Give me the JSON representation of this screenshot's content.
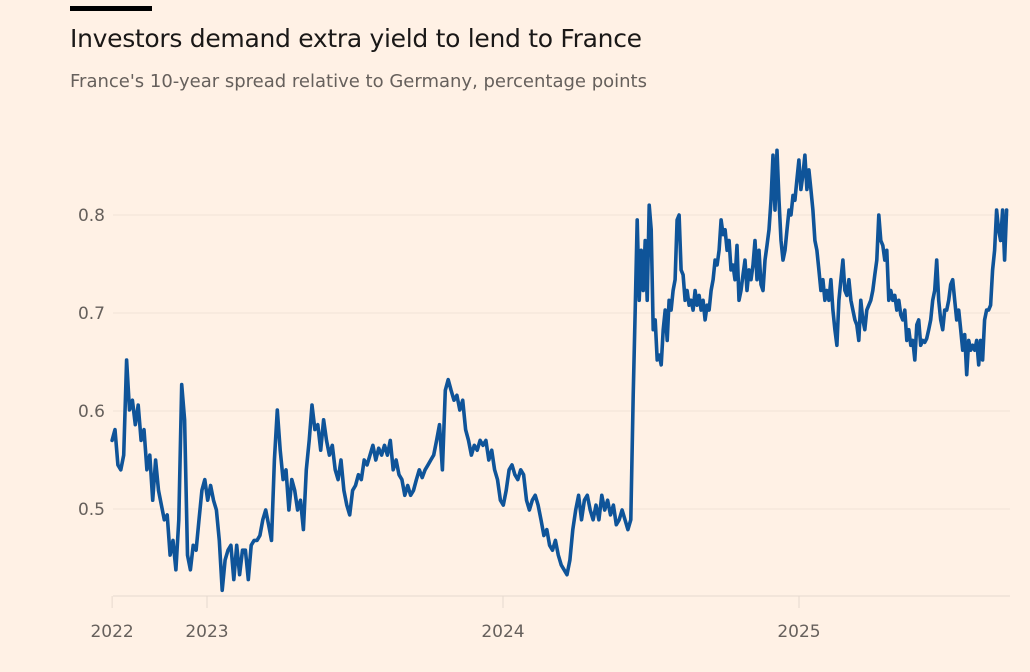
{
  "header": {
    "title": "Investors demand extra yield to lend to France",
    "subtitle": "France's 10-year spread relative to Germany, percentage points"
  },
  "chart_data": {
    "type": "line",
    "title": "Investors demand extra yield to lend to France",
    "subtitle": "France's 10-year spread relative to Germany, percentage points",
    "xlabel": "",
    "ylabel": "",
    "ylim": [
      0.41,
      0.88
    ],
    "yticks": [
      0.5,
      0.6,
      0.7,
      0.8
    ],
    "ytick_labels": [
      "0.5",
      "0.6",
      "0.7",
      "0.8"
    ],
    "xticks": [
      {
        "date": "2022-09-06",
        "label": "2022"
      },
      {
        "date": "2023-01-01",
        "label": "2023"
      },
      {
        "date": "2024-01-01",
        "label": "2024"
      },
      {
        "date": "2025-01-01",
        "label": "2025"
      }
    ],
    "grid": "horizontal",
    "legend": "none",
    "colors": {
      "line": "#0f5499",
      "background": "#fff1e5",
      "grid": "#f2e4d8",
      "text": "#66605c"
    },
    "series": [
      {
        "segments": [
          {
            "start": "2022-09-06",
            "end": "2024-06-07",
            "values": [
              0.57,
              0.581,
              0.545,
              0.54,
              0.555,
              0.652,
              0.601,
              0.611,
              0.586,
              0.606,
              0.57,
              0.581,
              0.54,
              0.555,
              0.509,
              0.55,
              0.519,
              0.504,
              0.489,
              0.494,
              0.453,
              0.468,
              0.438,
              0.489,
              0.627,
              0.591,
              0.453,
              0.438,
              0.463,
              0.458,
              0.489,
              0.519,
              0.53,
              0.509,
              0.524,
              0.509,
              0.499,
              0.468,
              0.417,
              0.448,
              0.458,
              0.463,
              0.428,
              0.463,
              0.433,
              0.458,
              0.458,
              0.428,
              0.463,
              0.468,
              0.468,
              0.473,
              0.489,
              0.499,
              0.484,
              0.468,
              0.55,
              0.601,
              0.56,
              0.53,
              0.54,
              0.499,
              0.53,
              0.519,
              0.499,
              0.509,
              0.479,
              0.54,
              0.57,
              0.606,
              0.581,
              0.586,
              0.56,
              0.591,
              0.57,
              0.555,
              0.565,
              0.54,
              0.53,
              0.55,
              0.519,
              0.504,
              0.494,
              0.519,
              0.524,
              0.535,
              0.53,
              0.55,
              0.545,
              0.555,
              0.565,
              0.55,
              0.562,
              0.555,
              0.565,
              0.555,
              0.57,
              0.54,
              0.55,
              0.535,
              0.53,
              0.514,
              0.524,
              0.514,
              0.519,
              0.53,
              0.54,
              0.532,
              0.54,
              0.545,
              0.55,
              0.555,
              0.57,
              0.586,
              0.54,
              0.621,
              0.632,
              0.621,
              0.611,
              0.616,
              0.601,
              0.611,
              0.581,
              0.57,
              0.555,
              0.565,
              0.56,
              0.57,
              0.565,
              0.57,
              0.55,
              0.56,
              0.54,
              0.53,
              0.509,
              0.504,
              0.519,
              0.54,
              0.545,
              0.535,
              0.53,
              0.54,
              0.535,
              0.509,
              0.499,
              0.509,
              0.514,
              0.504,
              0.489,
              0.473,
              0.479,
              0.463,
              0.458,
              0.468,
              0.453,
              0.443,
              0.438,
              0.433,
              0.448,
              0.479,
              0.499,
              0.514,
              0.489,
              0.509,
              0.514,
              0.499,
              0.489,
              0.504,
              0.489,
              0.514,
              0.499,
              0.509,
              0.494,
              0.504,
              0.484,
              0.489,
              0.499,
              0.489,
              0.479,
              0.489
            ]
          },
          {
            "start": "2024-06-10",
            "end": "2025-09-14",
            "values": [
              0.616,
              0.703,
              0.795,
              0.713,
              0.764,
              0.723,
              0.774,
              0.713,
              0.81,
              0.785,
              0.683,
              0.693,
              0.652,
              0.657,
              0.647,
              0.683,
              0.703,
              0.672,
              0.713,
              0.703,
              0.723,
              0.734,
              0.795,
              0.8,
              0.744,
              0.739,
              0.713,
              0.723,
              0.708,
              0.713,
              0.703,
              0.723,
              0.708,
              0.718,
              0.703,
              0.713,
              0.693,
              0.708,
              0.703,
              0.723,
              0.734,
              0.754,
              0.749,
              0.764,
              0.795,
              0.78,
              0.785,
              0.764,
              0.774,
              0.744,
              0.749,
              0.734,
              0.769,
              0.713,
              0.723,
              0.739,
              0.754,
              0.723,
              0.744,
              0.734,
              0.749,
              0.774,
              0.734,
              0.764,
              0.729,
              0.723,
              0.754,
              0.769,
              0.785,
              0.815,
              0.861,
              0.805,
              0.866,
              0.815,
              0.774,
              0.754,
              0.764,
              0.785,
              0.805,
              0.8,
              0.82,
              0.815,
              0.836,
              0.856,
              0.826,
              0.841,
              0.861,
              0.826,
              0.846,
              0.826,
              0.805,
              0.774,
              0.764,
              0.744,
              0.723,
              0.734,
              0.713,
              0.723,
              0.713,
              0.734,
              0.703,
              0.683,
              0.667,
              0.713,
              0.734,
              0.754,
              0.723,
              0.718,
              0.734,
              0.713,
              0.703,
              0.693,
              0.688,
              0.672,
              0.713,
              0.693,
              0.683,
              0.703,
              0.708,
              0.713,
              0.723,
              0.739,
              0.754,
              0.8,
              0.774,
              0.769,
              0.754,
              0.764,
              0.713,
              0.723,
              0.713,
              0.718,
              0.703,
              0.713,
              0.698,
              0.693,
              0.703,
              0.672,
              0.683,
              0.667,
              0.672,
              0.652,
              0.688,
              0.693,
              0.667,
              0.672,
              0.67,
              0.674,
              0.683,
              0.693,
              0.713,
              0.723,
              0.754,
              0.713,
              0.693,
              0.683,
              0.703,
              0.703,
              0.713,
              0.729,
              0.734,
              0.713,
              0.693,
              0.703,
              0.683,
              0.662,
              0.678,
              0.637,
              0.672,
              0.662,
              0.667,
              0.662,
              0.672,
              0.647,
              0.672,
              0.652,
              0.693,
              0.703,
              0.703,
              0.708,
              0.744,
              0.764,
              0.805,
              0.785,
              0.774,
              0.805,
              0.754,
              0.805
            ]
          }
        ]
      }
    ]
  }
}
